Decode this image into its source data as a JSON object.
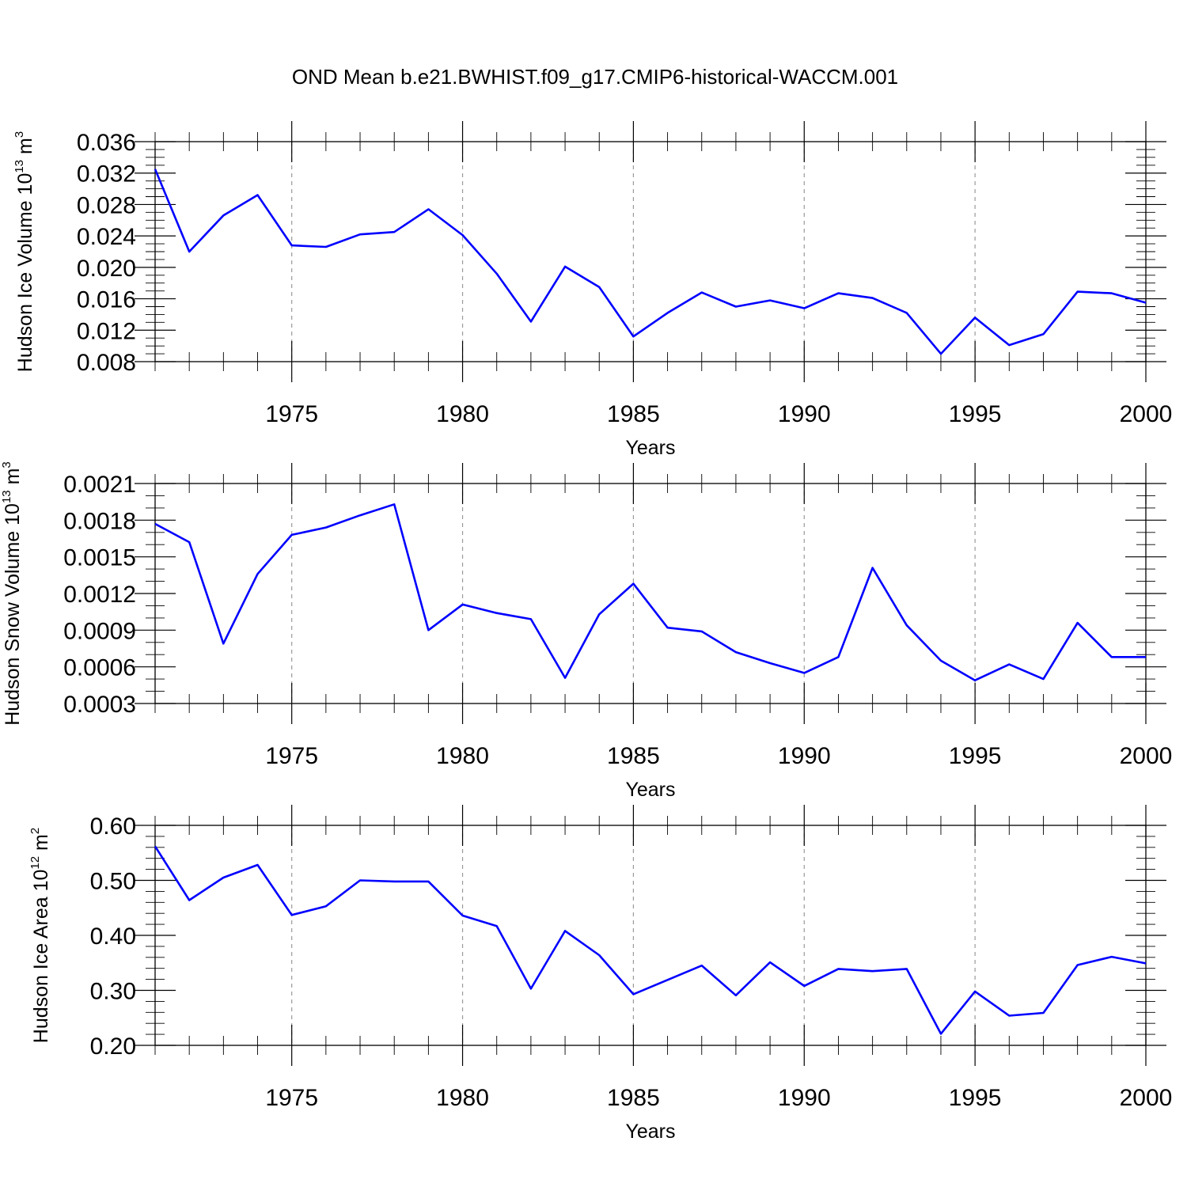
{
  "title": "OND Mean b.e21.BWHIST.f09_g17.CMIP6-historical-WACCM.001",
  "chart_data": [
    {
      "type": "line",
      "xlabel": "Years",
      "ylabel_text": "Hudson Ice Volume 10",
      "ylabel_exp": "13",
      "ylabel_unit": " m",
      "ylabel_unit_exp": "3",
      "xlim": [
        1971,
        2000
      ],
      "ylim": [
        0.008,
        0.036
      ],
      "xticks": [
        1975,
        1980,
        1985,
        1990,
        1995,
        2000
      ],
      "xtick_labels": [
        "1975",
        "1980",
        "1985",
        "1990",
        "1995",
        "2000"
      ],
      "yticks": [
        0.008,
        0.012,
        0.016,
        0.02,
        0.024,
        0.028,
        0.032,
        0.036
      ],
      "ytick_labels": [
        "0.008",
        "0.012",
        "0.016",
        "0.020",
        "0.024",
        "0.028",
        "0.032",
        "0.036"
      ],
      "y_minor_step": 0.001,
      "grid": "x-dashed",
      "color": "#0000ff",
      "x": [
        1971,
        1972,
        1973,
        1974,
        1975,
        1976,
        1977,
        1978,
        1979,
        1980,
        1981,
        1982,
        1983,
        1984,
        1985,
        1986,
        1987,
        1988,
        1989,
        1990,
        1991,
        1992,
        1993,
        1994,
        1995,
        1996,
        1997,
        1998,
        1999,
        2000
      ],
      "values": [
        0.0325,
        0.022,
        0.0266,
        0.0292,
        0.0228,
        0.0226,
        0.0242,
        0.0245,
        0.0274,
        0.0241,
        0.0192,
        0.0131,
        0.0201,
        0.0175,
        0.0112,
        0.0142,
        0.0168,
        0.015,
        0.0158,
        0.0148,
        0.0167,
        0.0161,
        0.0142,
        0.009,
        0.0136,
        0.0101,
        0.0115,
        0.0169,
        0.0167,
        0.0155
      ]
    },
    {
      "type": "line",
      "xlabel": "Years",
      "ylabel_text": "Hudson Snow Volume 10",
      "ylabel_exp": "13",
      "ylabel_unit": " m",
      "ylabel_unit_exp": "3",
      "xlim": [
        1971,
        2000
      ],
      "ylim": [
        0.0003,
        0.0021
      ],
      "xticks": [
        1975,
        1980,
        1985,
        1990,
        1995,
        2000
      ],
      "xtick_labels": [
        "1975",
        "1980",
        "1985",
        "1990",
        "1995",
        "2000"
      ],
      "yticks": [
        0.0003,
        0.0006,
        0.0009,
        0.0012,
        0.0015,
        0.0018,
        0.0021
      ],
      "ytick_labels": [
        "0.0003",
        "0.0006",
        "0.0009",
        "0.0012",
        "0.0015",
        "0.0018",
        "0.0021"
      ],
      "y_minor_step": 0.0001,
      "grid": "x-dashed",
      "color": "#0000ff",
      "x": [
        1971,
        1972,
        1973,
        1974,
        1975,
        1976,
        1977,
        1978,
        1979,
        1980,
        1981,
        1982,
        1983,
        1984,
        1985,
        1986,
        1987,
        1988,
        1989,
        1990,
        1991,
        1992,
        1993,
        1994,
        1995,
        1996,
        1997,
        1998,
        1999,
        2000
      ],
      "values": [
        0.00177,
        0.00162,
        0.00079,
        0.00136,
        0.00168,
        0.00174,
        0.00184,
        0.00193,
        0.0009,
        0.00111,
        0.00104,
        0.00099,
        0.00051,
        0.00103,
        0.00128,
        0.00092,
        0.00089,
        0.00072,
        0.00063,
        0.00055,
        0.00068,
        0.00141,
        0.00094,
        0.00065,
        0.00049,
        0.00062,
        0.0005,
        0.00096,
        0.00068,
        0.00068
      ]
    },
    {
      "type": "line",
      "xlabel": "Years",
      "ylabel_text": "Hudson Ice Area 10",
      "ylabel_exp": "12",
      "ylabel_unit": " m",
      "ylabel_unit_exp": "2",
      "xlim": [
        1971,
        2000
      ],
      "ylim": [
        0.2,
        0.6
      ],
      "xticks": [
        1975,
        1980,
        1985,
        1990,
        1995,
        2000
      ],
      "xtick_labels": [
        "1975",
        "1980",
        "1985",
        "1990",
        "1995",
        "2000"
      ],
      "yticks": [
        0.2,
        0.3,
        0.4,
        0.5,
        0.6
      ],
      "ytick_labels": [
        "0.20",
        "0.30",
        "0.40",
        "0.50",
        "0.60"
      ],
      "y_minor_step": 0.02,
      "grid": "x-dashed",
      "color": "#0000ff",
      "x": [
        1971,
        1972,
        1973,
        1974,
        1975,
        1976,
        1977,
        1978,
        1979,
        1980,
        1981,
        1982,
        1983,
        1984,
        1985,
        1986,
        1987,
        1988,
        1989,
        1990,
        1991,
        1992,
        1993,
        1994,
        1995,
        1996,
        1997,
        1998,
        1999,
        2000
      ],
      "values": [
        0.562,
        0.464,
        0.505,
        0.528,
        0.437,
        0.453,
        0.5,
        0.498,
        0.498,
        0.436,
        0.417,
        0.303,
        0.408,
        0.364,
        0.293,
        0.319,
        0.345,
        0.291,
        0.351,
        0.308,
        0.339,
        0.335,
        0.339,
        0.221,
        0.298,
        0.254,
        0.259,
        0.346,
        0.361,
        0.349
      ]
    }
  ]
}
